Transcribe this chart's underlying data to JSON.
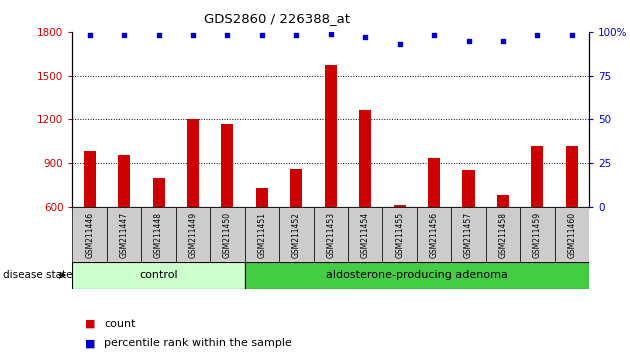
{
  "title": "GDS2860 / 226388_at",
  "samples": [
    "GSM211446",
    "GSM211447",
    "GSM211448",
    "GSM211449",
    "GSM211450",
    "GSM211451",
    "GSM211452",
    "GSM211453",
    "GSM211454",
    "GSM211455",
    "GSM211456",
    "GSM211457",
    "GSM211458",
    "GSM211459",
    "GSM211460"
  ],
  "counts": [
    985,
    955,
    800,
    1205,
    1170,
    730,
    860,
    1570,
    1265,
    615,
    935,
    855,
    680,
    1020,
    1020
  ],
  "percentile_ranks": [
    98,
    98,
    98,
    98,
    98,
    98,
    98,
    99,
    97,
    93,
    98,
    95,
    95,
    98,
    98
  ],
  "ylim_left": [
    600,
    1800
  ],
  "ylim_right": [
    0,
    100
  ],
  "yticks_left": [
    600,
    900,
    1200,
    1500,
    1800
  ],
  "yticks_right": [
    0,
    25,
    50,
    75,
    100
  ],
  "bar_color": "#cc0000",
  "dot_color": "#0000cc",
  "control_count": 5,
  "adenoma_count": 10,
  "control_label": "control",
  "adenoma_label": "aldosterone-producing adenoma",
  "disease_label": "disease state",
  "legend_count_label": "count",
  "legend_pct_label": "percentile rank within the sample",
  "control_bg": "#ccffcc",
  "adenoma_bg": "#44cc44",
  "sample_bg": "#cccccc",
  "fig_width": 6.3,
  "fig_height": 3.54,
  "dpi": 100
}
